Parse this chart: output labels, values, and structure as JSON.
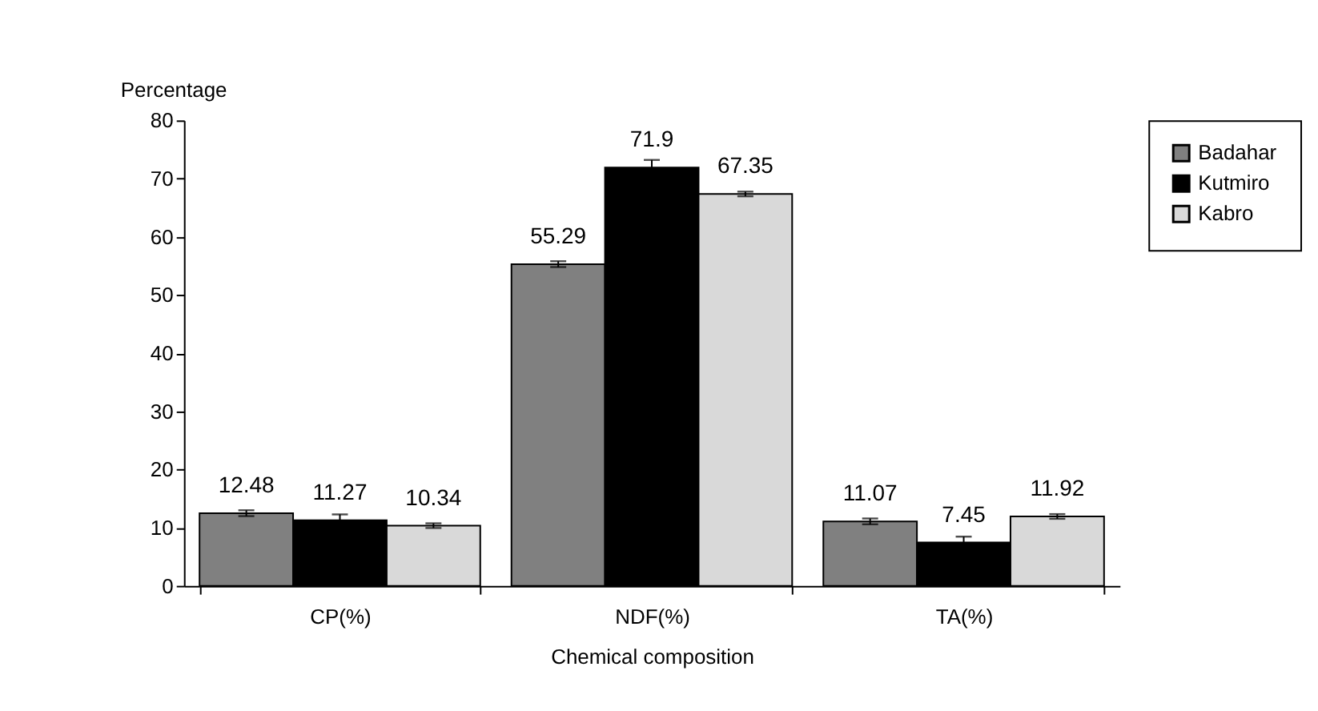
{
  "chart_data": {
    "type": "bar",
    "xlabel": "Chemical composition",
    "ylabel": "Percentage",
    "categories": [
      "CP(%)",
      "NDF(%)",
      "TA(%)"
    ],
    "series": [
      {
        "name": "Badahar",
        "color": "#808080",
        "values": [
          12.48,
          55.29,
          11.07
        ],
        "errors": [
          0.5,
          0.5,
          0.5
        ]
      },
      {
        "name": "Kutmiro",
        "color": "#000000",
        "values": [
          11.27,
          71.9,
          7.45
        ],
        "errors": [
          1.0,
          1.3,
          1.0
        ]
      },
      {
        "name": "Kabro",
        "color": "#d9d9d9",
        "values": [
          10.34,
          67.35,
          11.92
        ],
        "errors": [
          0.4,
          0.4,
          0.4
        ]
      }
    ],
    "ylim": [
      0,
      80
    ],
    "yticks": [
      0,
      10,
      20,
      30,
      40,
      50,
      60,
      70,
      80
    ],
    "grid": false,
    "legend": "right",
    "data_labels": true
  }
}
